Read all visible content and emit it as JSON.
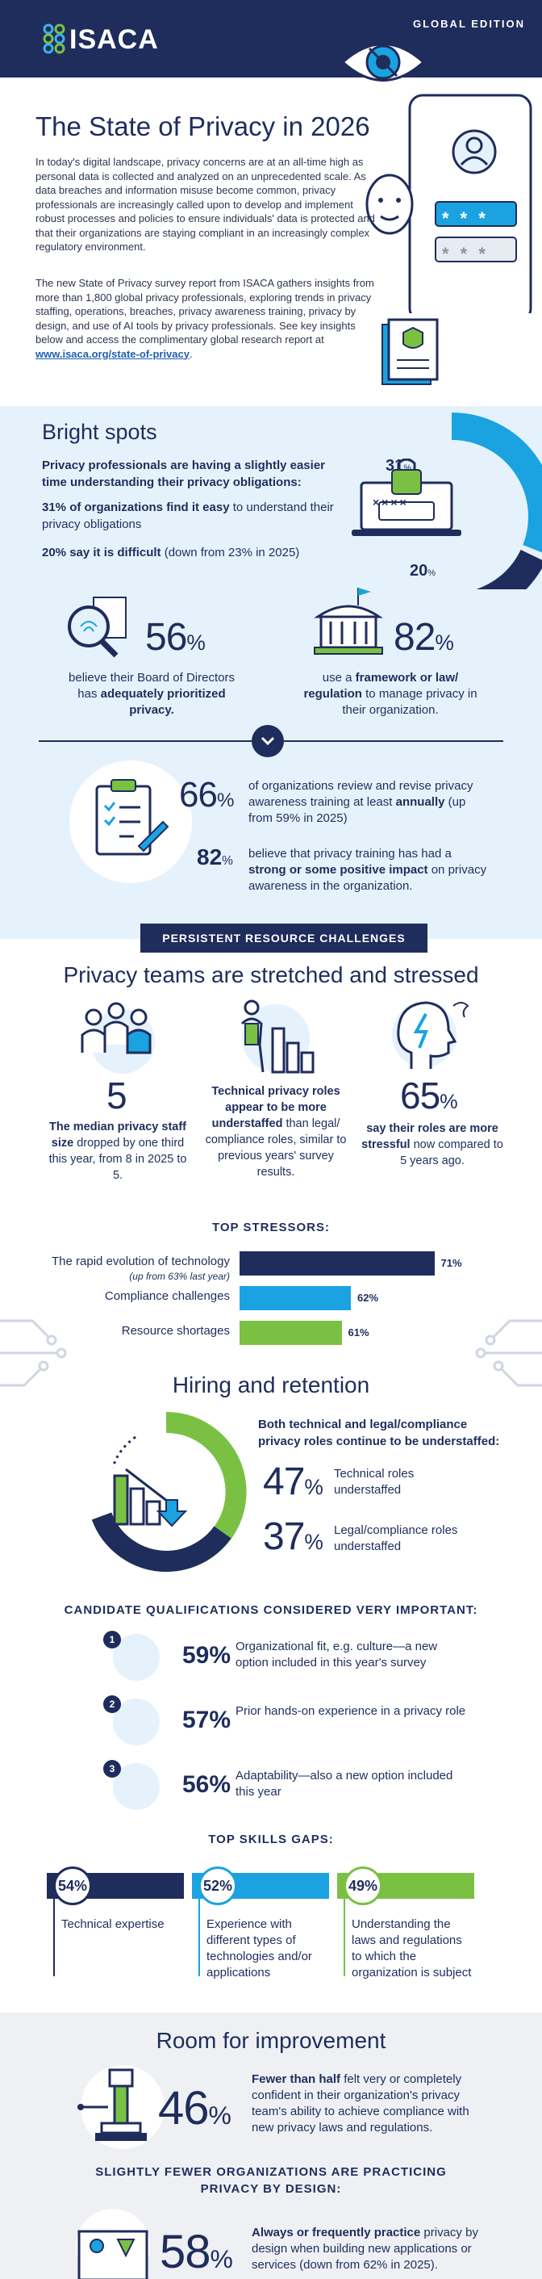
{
  "header": {
    "brand": "ISACA",
    "edition": "GLOBAL EDITION"
  },
  "intro": {
    "title": "The State of Privacy in 2026",
    "p1": "In today's digital landscape, privacy concerns are at an all-time high as personal data is collected and analyzed on an unprecedented scale. As data breaches and information misuse become common, privacy professionals are increasingly called upon to develop and implement robust processes and policies to ensure individuals' data is protected and that their organizations are staying compliant in an increasingly complex regulatory environment.",
    "p2": "The new State of Privacy survey report from ISACA gathers insights from more than 1,800 global privacy professionals, exploring trends in privacy staffing, operations, breaches, privacy awareness training, privacy by design, and use of AI tools by privacy professionals. See key insights below and access the complimentary global research report at",
    "link": "www.isaca.org/state-of-privacy",
    "link_end": ".",
    "illus_code1": "* * *",
    "illus_code2": "* * *"
  },
  "bright_spots": {
    "title": "Bright spots",
    "lead": "Privacy professionals are having a slightly easier time understanding their privacy obligations:",
    "s1_bold": "31% of organizations find it easy",
    "s1_rest": " to understand their privacy obligations",
    "s2_bold": "20% say it is difficult",
    "s2_rest": " (down from 23% in 2025)",
    "ring_easy": "31",
    "ring_difficult": "20",
    "ring_easy_value": 31,
    "ring_difficult_value": 20,
    "laptop_code": "××××",
    "stat_board_num": "56",
    "stat_board_pre": "believe their Board of Directors has ",
    "stat_board_bold": "adequately prioritized privacy.",
    "stat_framework_num": "82",
    "stat_framework_pre": "use a ",
    "stat_framework_bold": "framework or law/ regulation",
    "stat_framework_rest": " to manage privacy in their organization.",
    "train_num1": "66",
    "train_text1_pre": "of organizations review and revise privacy awareness training at least ",
    "train_text1_bold": "annually",
    "train_text1_rest": " (up from 59% in 2025)",
    "train_num2": "82",
    "train_text2_pre": "believe that privacy training has had a ",
    "train_text2_bold": "strong or some positive impact",
    "train_text2_rest": " on privacy awareness in the organization.",
    "pct_sign": "%"
  },
  "resource": {
    "banner": "PERSISTENT RESOURCE CHALLENGES",
    "title": "Privacy teams are stretched and stressed",
    "c1_num": "5",
    "c1_bold": "The median privacy staff size",
    "c1_rest": " dropped by one third this year, from 8 in 2025 to 5.",
    "c2_bold": "Technical privacy roles appear to be more understaffed",
    "c2_rest": " than legal/ compliance roles, similar to previous years' survey results.",
    "c3_num": "65",
    "c3_bold": "say their roles are more stressful",
    "c3_rest": " now compared to 5 years ago.",
    "stressors_title": "TOP STRESSORS:",
    "stressors": [
      {
        "label": "The rapid evolution of technology",
        "sub": "(up from 63% last year)",
        "value": "71%",
        "v": 71,
        "color": "#1f2d5c"
      },
      {
        "label": "Compliance challenges",
        "sub": "",
        "value": "62%",
        "v": 62,
        "color": "#1aa3e0"
      },
      {
        "label": "Resource shortages",
        "sub": "",
        "value": "61%",
        "v": 61,
        "color": "#7ac143"
      }
    ]
  },
  "hiring": {
    "title": "Hiring and retention",
    "lead": "Both technical and legal/compliance privacy roles continue to be understaffed:",
    "tech_num": "47",
    "tech_label": "Technical roles understaffed",
    "legal_num": "37",
    "legal_label": "Legal/compliance roles understaffed",
    "qual_title": "CANDIDATE QUALIFICATIONS CONSIDERED VERY IMPORTANT:",
    "quals": [
      {
        "rank": "1",
        "num": "59%",
        "text": "Organizational fit, e.g. culture—a new option included in this year's survey"
      },
      {
        "rank": "2",
        "num": "57%",
        "text": "Prior hands-on experience in a privacy role"
      },
      {
        "rank": "3",
        "num": "56%",
        "text": "Adaptability—also a new option included this year"
      }
    ],
    "gaps_title": "TOP SKILLS GAPS:",
    "gaps": [
      {
        "num": "54%",
        "text": "Technical expertise",
        "color": "#1f2d5c"
      },
      {
        "num": "52%",
        "text": "Experience with different types of technologies and/or applications",
        "color": "#1aa3e0"
      },
      {
        "num": "49%",
        "text": "Understanding the laws and regulations to which the organization is subject",
        "color": "#7ac143"
      }
    ]
  },
  "improvement": {
    "title": "Room for improvement",
    "num1": "46",
    "text1_bold": "Fewer than half",
    "text1_rest": " felt very or completely confident in their organization's privacy team's ability to achieve compliance with new privacy laws and regulations.",
    "subhead": "SLIGHTLY FEWER ORGANIZATIONS ARE PRACTICING PRIVACY BY DESIGN:",
    "num2": "58",
    "text2_bold": "Always or frequently practice",
    "text2_rest": " privacy by design when building new applications or services (down from 62% in 2025)."
  }
}
